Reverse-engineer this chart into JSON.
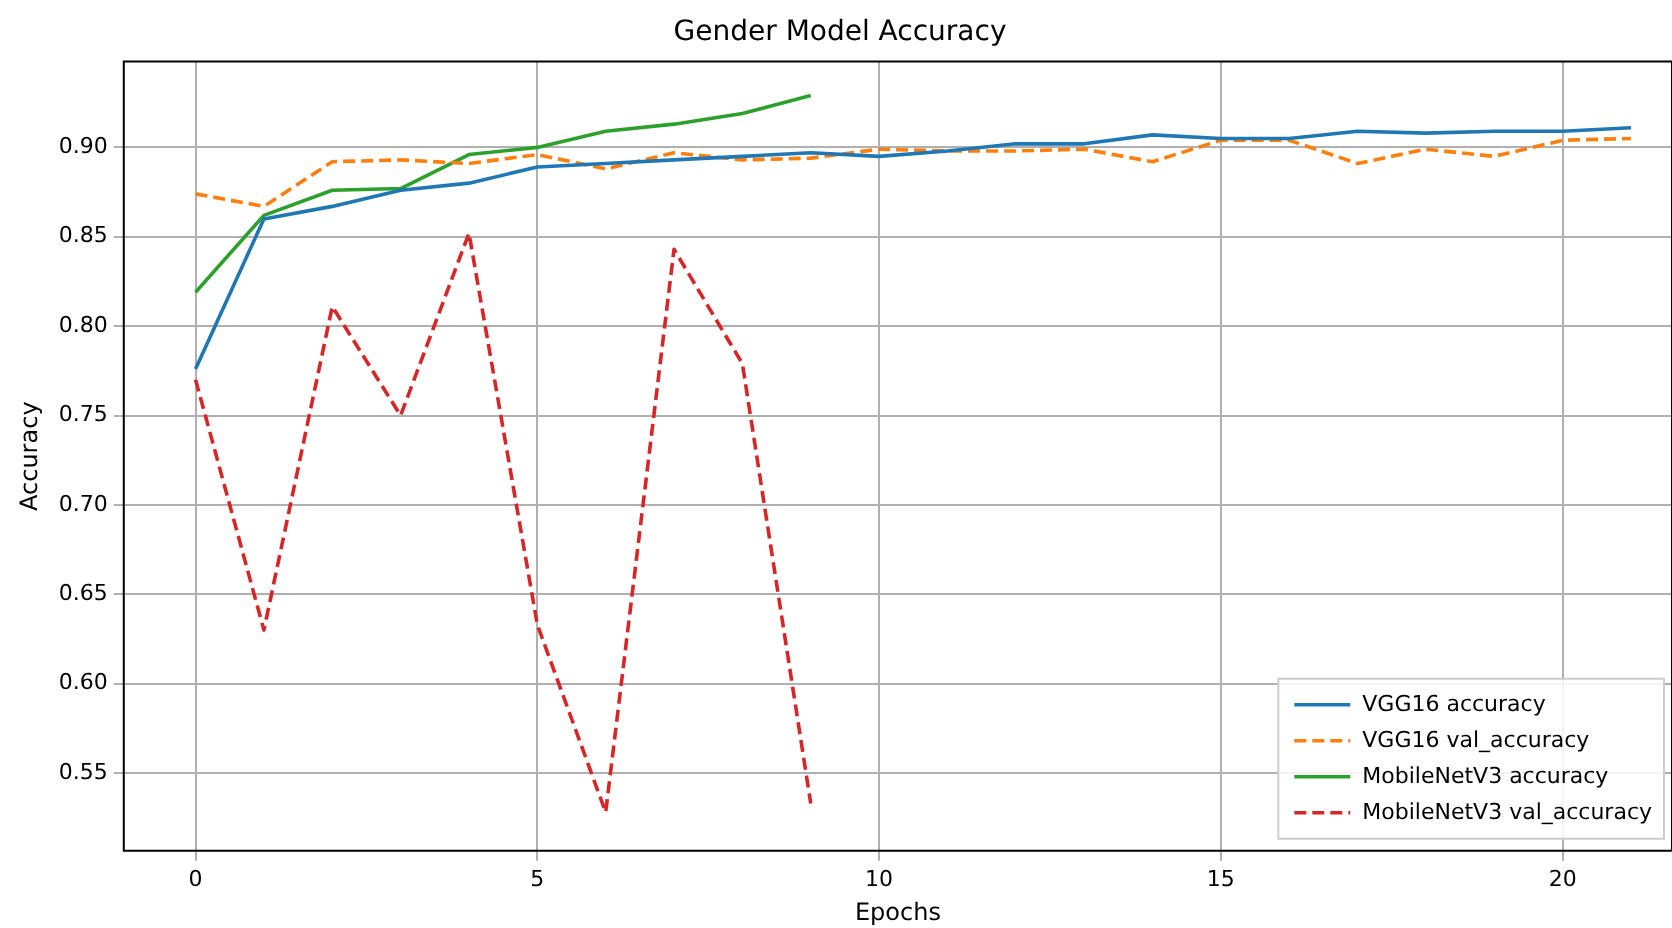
{
  "chart_data": {
    "type": "line",
    "title": "Gender Model Accuracy",
    "xlabel": "Epochs",
    "ylabel": "Accuracy",
    "xlim": [
      -1.05,
      21.6
    ],
    "xticks": [
      0,
      5,
      10,
      15,
      20
    ],
    "ylim": [
      0.5065,
      0.948
    ],
    "yticks": [
      0.55,
      {
        "value": 0.6,
        "label": "0.60"
      },
      0.65,
      {
        "value": 0.7,
        "label": "0.70"
      },
      0.75,
      {
        "value": 0.8,
        "label": "0.80"
      },
      0.85,
      {
        "value": 0.9,
        "label": "0.90"
      }
    ],
    "grid": true,
    "legend": "bottom right",
    "marker": "none",
    "series": [
      {
        "name": "VGG16 accuracy",
        "color": "#1f77b4",
        "line_style": "solid",
        "x": [
          0,
          1,
          2,
          3,
          4,
          5,
          6,
          7,
          8,
          9,
          10,
          11,
          12,
          13,
          14,
          15,
          16,
          17,
          18,
          19,
          20,
          21
        ],
        "values": [
          0.776,
          0.86,
          0.867,
          0.876,
          0.88,
          0.889,
          0.891,
          0.893,
          0.895,
          0.897,
          0.895,
          0.898,
          0.902,
          0.902,
          0.907,
          0.905,
          0.905,
          0.909,
          0.908,
          0.909,
          0.909,
          0.911
        ]
      },
      {
        "name": "VGG16 val_accuracy",
        "color": "#ff7f0e",
        "line_style": "dashed",
        "x": [
          0,
          1,
          2,
          3,
          4,
          5,
          6,
          7,
          8,
          9,
          10,
          11,
          12,
          13,
          14,
          15,
          16,
          17,
          18,
          19,
          20,
          21
        ],
        "values": [
          0.874,
          0.867,
          0.892,
          0.893,
          0.891,
          0.896,
          0.888,
          0.897,
          0.893,
          0.894,
          0.899,
          0.898,
          0.898,
          0.899,
          0.892,
          0.904,
          0.904,
          0.891,
          0.899,
          0.895,
          0.904,
          0.905
        ]
      },
      {
        "name": "MobileNetV3 accuracy",
        "color": "#2ca02c",
        "line_style": "solid",
        "x": [
          0,
          1,
          2,
          3,
          4,
          5,
          6,
          7,
          8,
          9
        ],
        "values": [
          0.819,
          0.862,
          0.876,
          0.877,
          0.896,
          0.9,
          0.909,
          0.913,
          0.919,
          0.929
        ]
      },
      {
        "name": "MobileNetV3 val_accuracy",
        "color": "#d62728",
        "line_style": "dashed",
        "x": [
          0,
          1,
          2,
          3,
          4,
          5,
          6,
          7,
          8,
          9
        ],
        "values": [
          0.77,
          0.63,
          0.811,
          0.75,
          0.852,
          0.633,
          0.528,
          0.843,
          0.779,
          0.533
        ]
      }
    ]
  }
}
